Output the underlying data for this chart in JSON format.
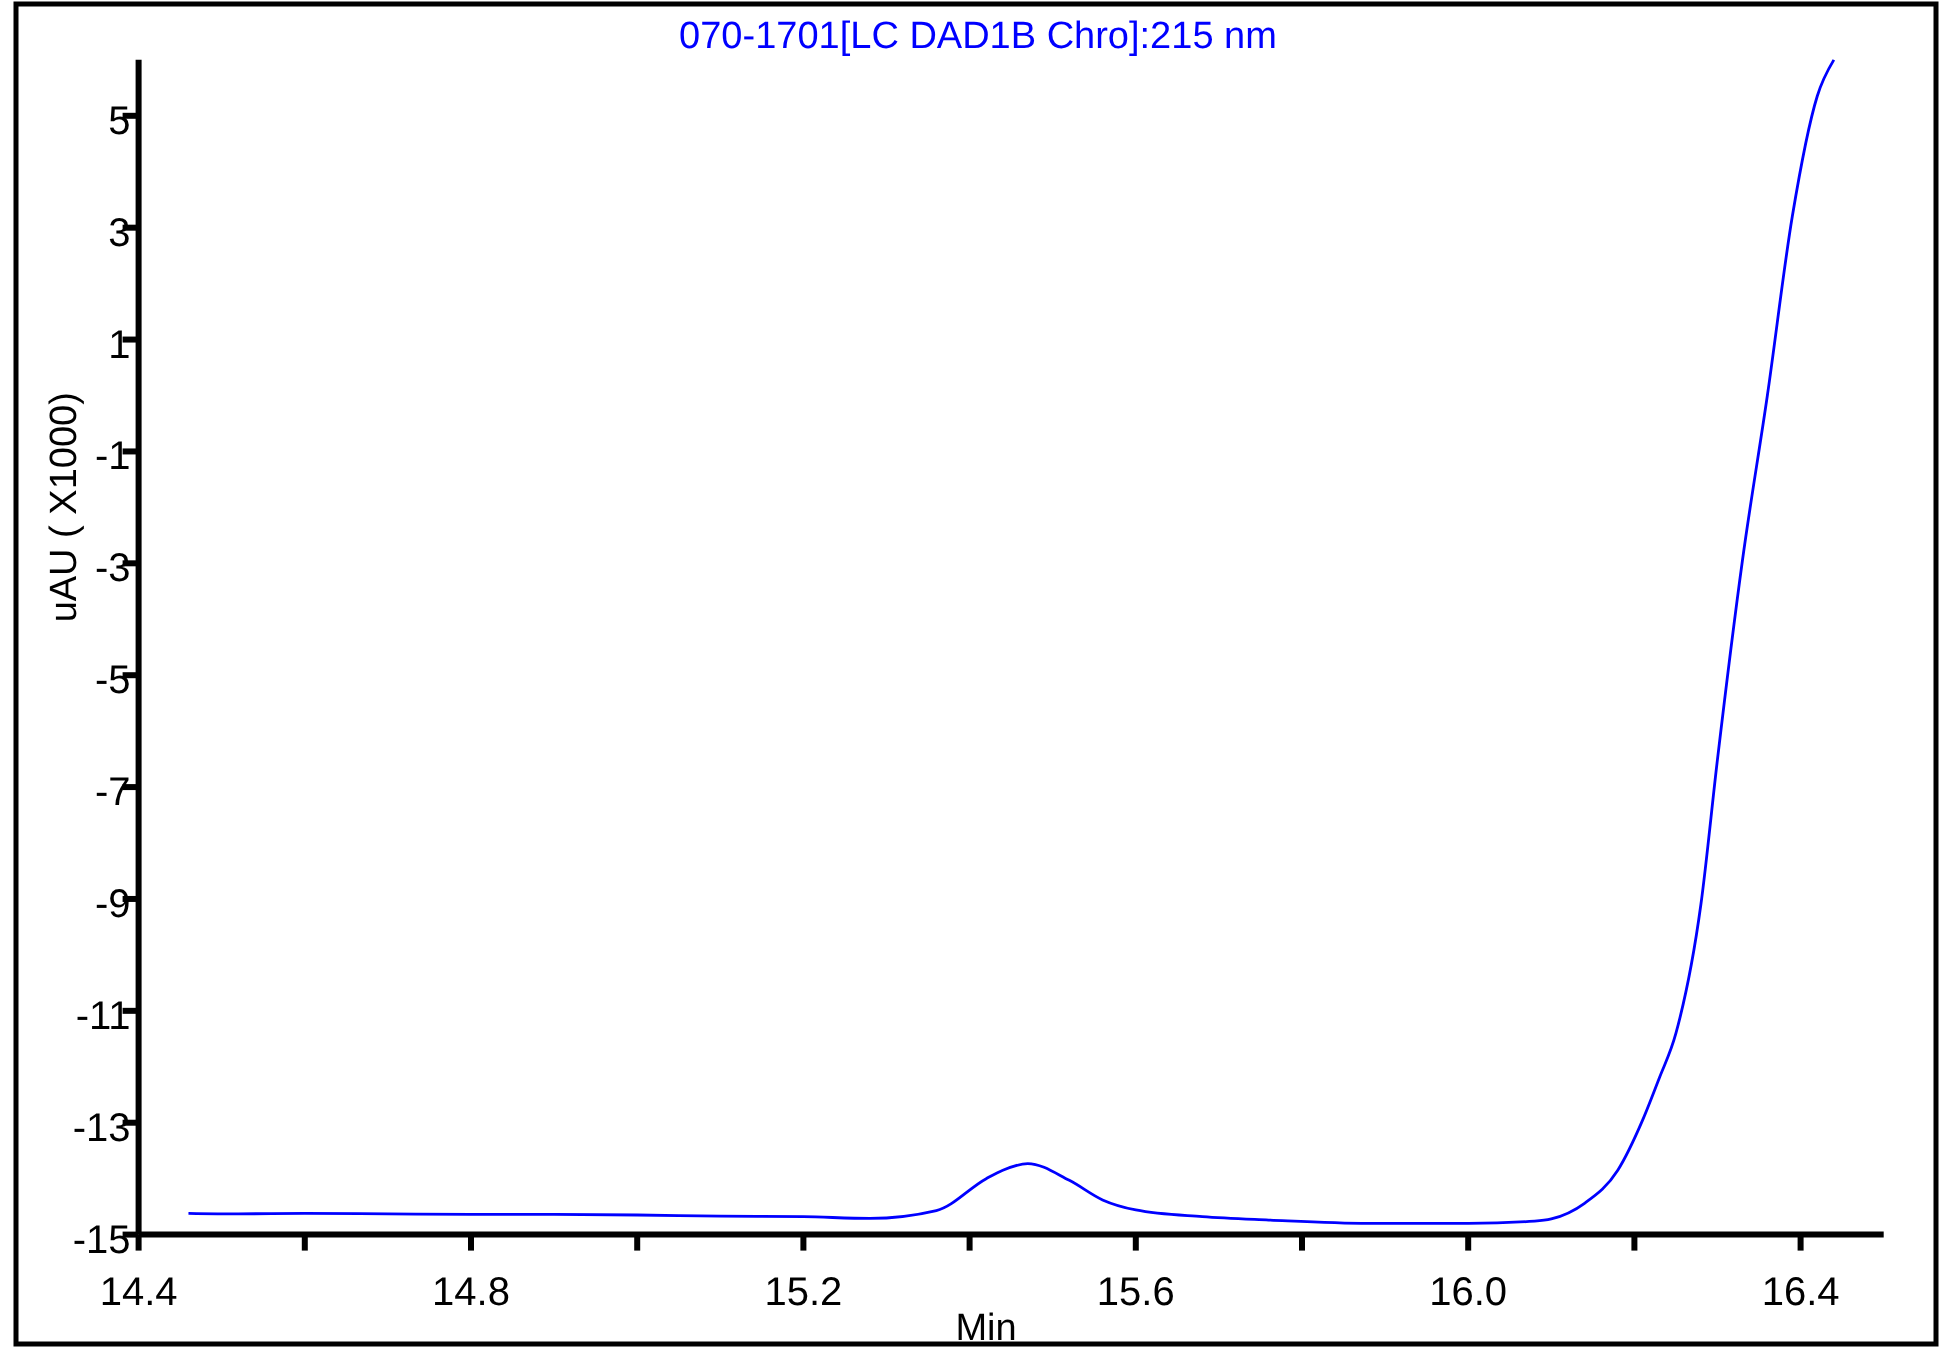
{
  "chart_data": {
    "type": "line",
    "title": "070-1701[LC DAD1B Chro]:215 nm",
    "xlabel": "Min",
    "ylabel": "uAU ( X1000)",
    "xlim": [
      14.4,
      16.5
    ],
    "ylim": [
      -15,
      6
    ],
    "xticks": [
      {
        "value": 14.4,
        "label": "14.4"
      },
      {
        "value": 14.6,
        "label": null
      },
      {
        "value": 14.8,
        "label": "14.8"
      },
      {
        "value": 15.0,
        "label": null
      },
      {
        "value": 15.2,
        "label": "15.2"
      },
      {
        "value": 15.4,
        "label": null
      },
      {
        "value": 15.6,
        "label": "15.6"
      },
      {
        "value": 15.8,
        "label": null
      },
      {
        "value": 16.0,
        "label": "16.0"
      },
      {
        "value": 16.2,
        "label": null
      },
      {
        "value": 16.4,
        "label": "16.4"
      }
    ],
    "yticks": [
      -15,
      -13,
      -11,
      -9,
      -7,
      -5,
      -3,
      -1,
      1,
      3,
      5
    ],
    "marker": "none",
    "line_style": "solid",
    "series": [
      {
        "color": "#0000ff",
        "x": [
          14.46,
          14.52,
          14.6,
          14.7,
          14.8,
          14.9,
          15.0,
          15.1,
          15.2,
          15.28,
          15.36,
          15.42,
          15.44,
          15.47,
          15.52,
          15.56,
          15.6,
          15.68,
          15.76,
          15.88,
          16.0,
          16.08,
          16.1,
          16.14,
          16.18,
          16.21,
          16.23,
          16.25,
          16.28,
          16.3,
          16.33,
          16.36,
          16.39,
          16.42,
          16.44
        ],
        "values": [
          -14.62,
          -14.63,
          -14.62,
          -14.63,
          -14.64,
          -14.64,
          -14.65,
          -14.67,
          -14.68,
          -14.71,
          -14.57,
          -14.0,
          -13.85,
          -13.73,
          -14.03,
          -14.38,
          -14.56,
          -14.68,
          -14.74,
          -14.8,
          -14.8,
          -14.76,
          -14.72,
          -14.44,
          -13.85,
          -12.95,
          -12.2,
          -11.4,
          -9.1,
          -6.5,
          -2.95,
          0.0,
          3.2,
          5.35,
          6.0
        ]
      }
    ]
  }
}
